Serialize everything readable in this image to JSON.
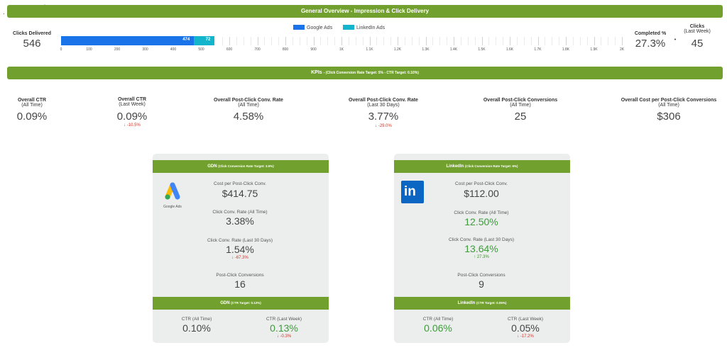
{
  "header": {
    "title": "General Overview - Impression & Click Delivery",
    "marker1": ".",
    "marker2": "·"
  },
  "delivery": {
    "clicks_delivered_label": "Clicks Delivered",
    "clicks_delivered_value": "546",
    "completed_label": "Completed %",
    "completed_value": "27.3%",
    "clicks_week_label": "Clicks",
    "clicks_week_sub": "(Last Week)",
    "clicks_week_value": "45",
    "separator": "•"
  },
  "chart_data": {
    "type": "bar",
    "orientation": "horizontal-stacked",
    "series": [
      {
        "name": "Google Ads",
        "values": [
          474
        ],
        "color": "#1a73e8"
      },
      {
        "name": "LinkedIn Ads",
        "values": [
          72
        ],
        "color": "#12b5cb"
      }
    ],
    "data_labels": [
      "474",
      "72"
    ],
    "xlim": [
      0,
      2000
    ],
    "tick_labels": [
      "0",
      "100",
      "200",
      "300",
      "400",
      "500",
      "600",
      "700",
      "800",
      "900",
      "1K",
      "1.1K",
      "1.2K",
      "1.3K",
      "1.4K",
      "1.5K",
      "1.6K",
      "1.7K",
      "1.8K",
      "1.9K",
      "2K"
    ],
    "legend_position": "top-center"
  },
  "kpi_banner": {
    "title": "KPIs",
    "subtitle": "- (Click Conversion Rate Target: 5% - CTR Target: 0.10%)"
  },
  "kpis": [
    {
      "label": "Overall CTR",
      "sub": "(All Time)",
      "value": "0.09%",
      "change": ""
    },
    {
      "label": "Overall CTR",
      "sub": "(Last Week)",
      "value": "0.09%",
      "change": "↓ -10.5%"
    },
    {
      "label": "Overall Post-Click Conv. Rate",
      "sub": "(All Time)",
      "value": "4.58%",
      "change": ""
    },
    {
      "label": "Overall Post-Click Conv. Rate",
      "sub": "(Last 30 Days)",
      "value": "3.77%",
      "change": "↓ -29.0%"
    },
    {
      "label": "Overall Post-Click Conversions",
      "sub": "(All Time)",
      "value": "25",
      "change": ""
    },
    {
      "label": "Overall Cost per Post-Click Conversions",
      "sub": "(All Time)",
      "value": "$306",
      "change": ""
    }
  ],
  "gdn": {
    "header_title": "GDN",
    "header_sub": "(Click Conversion Rate Target: 3.5%)",
    "logo_caption": "Google Ads",
    "cost_label": "Cost per Post-Click Conv.",
    "cost_value": "$414.75",
    "rate_all_label": "Click Conv. Rate (All Time)",
    "rate_all_value": "3.38%",
    "rate_30_label": "Click Conv. Rate (Last 30 Days)",
    "rate_30_value": "1.54%",
    "rate_30_change": "↓ -67.3%",
    "conv_label": "Post-Click Conversions",
    "conv_value": "16",
    "footer_title": "GDN",
    "footer_sub": "(CTR Target: 0.12%)",
    "ctr_all_label": "CTR (All Time)",
    "ctr_all_value": "0.10%",
    "ctr_week_label": "CTR (Last Week)",
    "ctr_week_value": "0.13%",
    "ctr_week_change": "↓ -0.3%"
  },
  "linkedin": {
    "header_title": "LinkedIn",
    "header_sub": "(Click Conversion Rate Target: 6%)",
    "logo_text": "in",
    "cost_label": "Cost per Post-Click Conv.",
    "cost_value": "$112.00",
    "rate_all_label": "Click Conv. Rate (All Time)",
    "rate_all_value": "12.50%",
    "rate_30_label": "Click Conv. Rate (Last 30 Days)",
    "rate_30_value": "13.64%",
    "rate_30_change": "↑ 27.3%",
    "conv_label": "Post-Click Conversions",
    "conv_value": "9",
    "footer_title": "LinkedIn",
    "footer_sub": "(CTR Target: 0.05%)",
    "ctr_all_label": "CTR (All Time)",
    "ctr_all_value": "0.06%",
    "ctr_week_label": "CTR (Last Week)",
    "ctr_week_value": "0.05%",
    "ctr_week_change": "↓ -17.2%"
  }
}
